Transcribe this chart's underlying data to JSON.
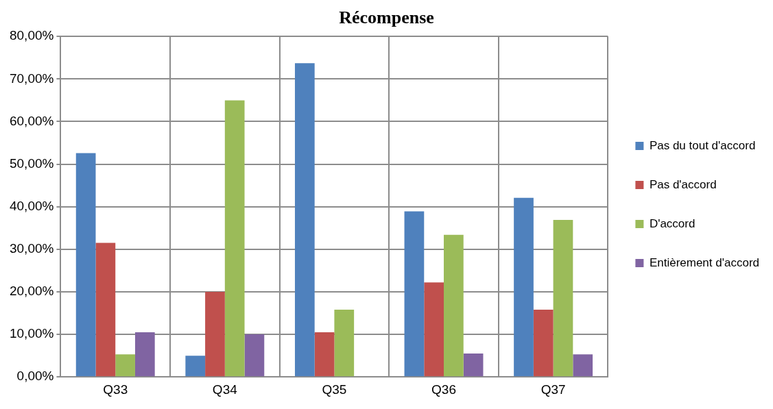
{
  "chart_data": {
    "type": "bar",
    "title": "Récompense",
    "categories": [
      "Q33",
      "Q34",
      "Q35",
      "Q36",
      "Q37"
    ],
    "series": [
      {
        "name": "Pas du tout d'accord",
        "color": "#4f81bd",
        "values": [
          52.6,
          5.0,
          73.7,
          38.9,
          42.1
        ]
      },
      {
        "name": "Pas d'accord",
        "color": "#c0504d",
        "values": [
          31.5,
          20.0,
          10.5,
          22.2,
          15.8
        ]
      },
      {
        "name": "D'accord",
        "color": "#9bbb59",
        "values": [
          5.3,
          65.0,
          15.8,
          33.4,
          36.9
        ]
      },
      {
        "name": "Entièrement d'accord",
        "color": "#8064a2",
        "values": [
          10.5,
          10.0,
          0,
          5.5,
          5.3
        ]
      }
    ],
    "ylim": [
      0,
      80
    ],
    "yticks": [
      {
        "value": 0,
        "label": "0,00%"
      },
      {
        "value": 10,
        "label": "10,00%"
      },
      {
        "value": 20,
        "label": "20,00%"
      },
      {
        "value": 30,
        "label": "30,00%"
      },
      {
        "value": 40,
        "label": "40,00%"
      },
      {
        "value": 50,
        "label": "50,00%"
      },
      {
        "value": 60,
        "label": "60,00%"
      },
      {
        "value": 70,
        "label": "70,00%"
      },
      {
        "value": 80,
        "label": "80,00%"
      }
    ],
    "grid": true,
    "legend": "right"
  }
}
